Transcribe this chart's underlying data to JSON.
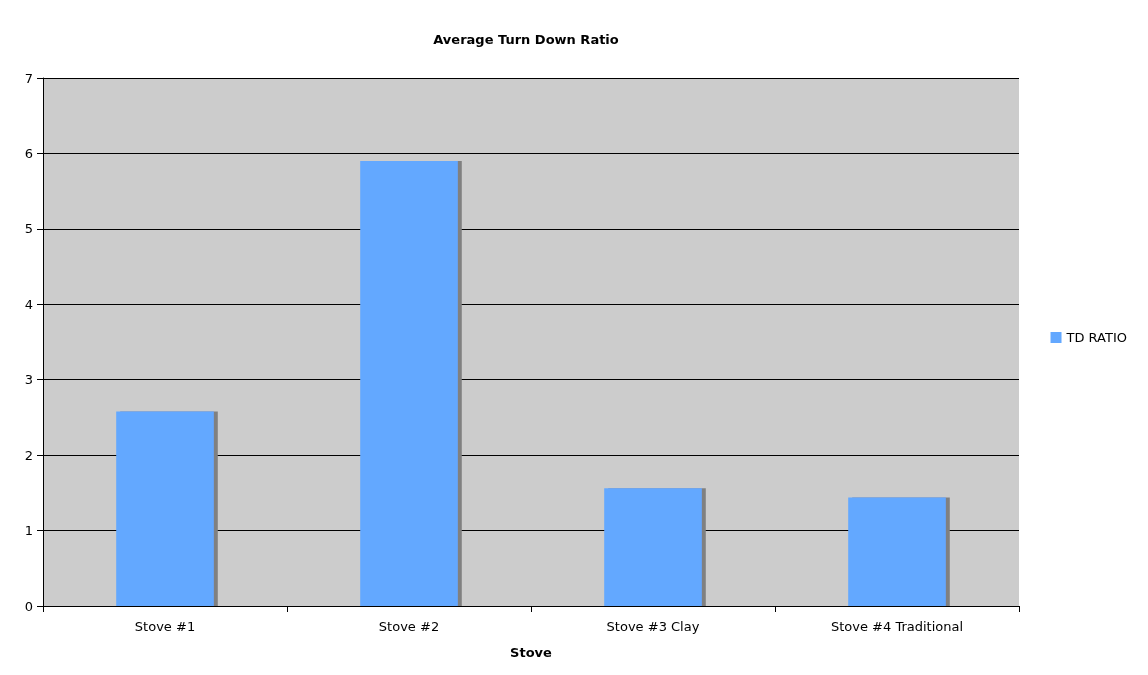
{
  "chart_data": {
    "type": "bar",
    "title": "Average Turn Down Ratio",
    "xlabel": "Stove",
    "categories": [
      "Stove #1",
      "Stove #2",
      "Stove #3 Clay",
      "Stove #4 Traditional"
    ],
    "series": [
      {
        "name": "TD RATIO",
        "color": "#63a8ff",
        "values": [
          2.58,
          5.9,
          1.56,
          1.44
        ]
      }
    ],
    "ylim": [
      0,
      7
    ],
    "yticks": [
      0,
      1,
      2,
      3,
      4,
      5,
      6,
      7
    ],
    "grid": "y",
    "legend": "right"
  }
}
